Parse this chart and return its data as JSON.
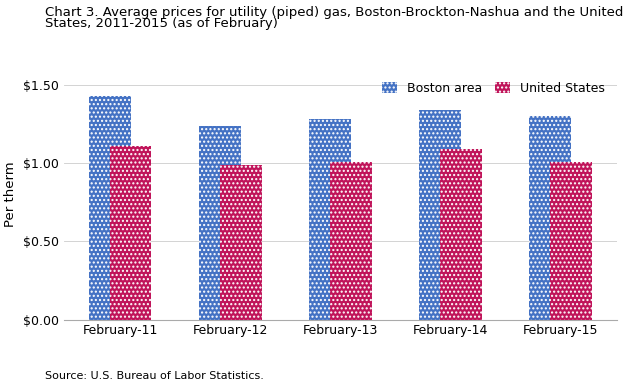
{
  "title_line1": "Chart 3. Average prices for utility (piped) gas, Boston-Brockton-Nashua and the United",
  "title_line2": "States, 2011-2015 (as of February)",
  "ylabel": "Per therm",
  "source": "Source: U.S. Bureau of Labor Statistics.",
  "categories": [
    "February-11",
    "February-12",
    "February-13",
    "February-14",
    "February-15"
  ],
  "boston_values": [
    1.43,
    1.24,
    1.28,
    1.34,
    1.3
  ],
  "us_values": [
    1.11,
    0.99,
    1.01,
    1.09,
    1.01
  ],
  "boston_color": "#4472C4",
  "us_color": "#C0145A",
  "ylim": [
    0.0,
    1.6
  ],
  "yticks": [
    0.0,
    0.5,
    1.0,
    1.5
  ],
  "legend_labels": [
    "Boston area",
    "United States"
  ],
  "background_color": "#ffffff",
  "bar_width": 0.38,
  "bar_gap": 0.0,
  "title_fontsize": 9.5,
  "axis_fontsize": 9.5,
  "tick_fontsize": 9,
  "legend_fontsize": 9
}
